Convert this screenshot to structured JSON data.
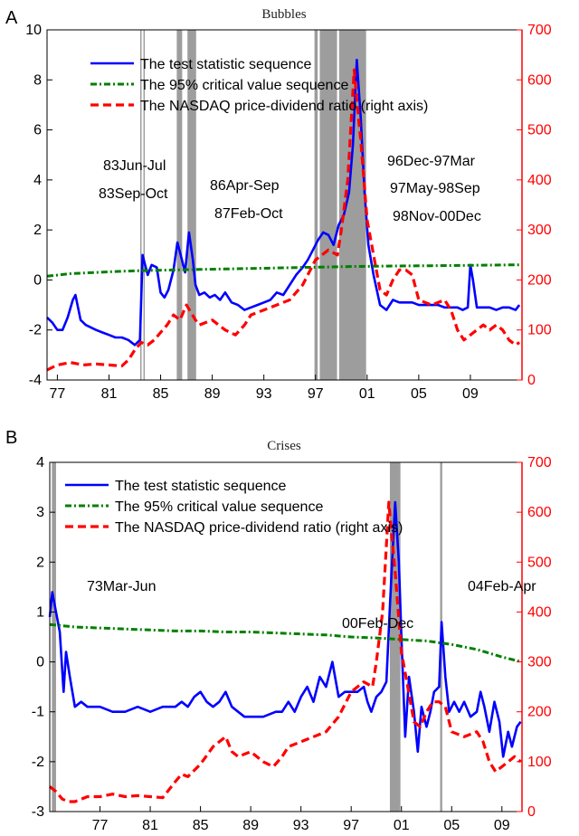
{
  "chart_data": [
    {
      "panel_label": "A",
      "type": "line",
      "title": "Bubbles",
      "x_ticks": [
        "77",
        "81",
        "85",
        "89",
        "93",
        "97",
        "01",
        "05",
        "09"
      ],
      "xlim": [
        1976.2,
        2013.0
      ],
      "left_axis": {
        "ylim": [
          -4,
          10
        ],
        "ticks": [
          "-4",
          "-2",
          "0",
          "2",
          "4",
          "6",
          "8",
          "10"
        ]
      },
      "right_axis": {
        "ylim": [
          0,
          700
        ],
        "ticks": [
          "0",
          "100",
          "200",
          "300",
          "400",
          "500",
          "600",
          "700"
        ],
        "color": "#ff0000"
      },
      "legend": {
        "position": "top-left"
      },
      "annotations": [
        "83Jun-Jul",
        "83Sep-Oct",
        "86Apr-Sep",
        "87Feb-Oct",
        "96Dec-97Mar",
        "97May-98Sep",
        "98Nov-00Dec"
      ],
      "shaded_periods": [
        [
          1983.42,
          1983.5
        ],
        [
          1983.67,
          1983.75
        ],
        [
          1986.25,
          1986.67
        ],
        [
          1987.08,
          1987.75
        ],
        [
          1996.92,
          1997.17
        ],
        [
          1997.33,
          1998.67
        ],
        [
          1998.83,
          2000.92
        ]
      ],
      "series": [
        {
          "name": "The test statistic sequence",
          "color": "#0000ff",
          "style": "solid",
          "axis": "left",
          "x": [
            1976.2,
            1976.6,
            1977.0,
            1977.4,
            1977.8,
            1978.2,
            1978.4,
            1978.8,
            1979.2,
            1979.6,
            1980.0,
            1980.5,
            1981.0,
            1981.5,
            1982.0,
            1982.5,
            1983.0,
            1983.4,
            1983.6,
            1983.8,
            1984.0,
            1984.3,
            1984.7,
            1985.0,
            1985.3,
            1985.6,
            1986.0,
            1986.3,
            1986.6,
            1986.9,
            1987.2,
            1987.5,
            1987.7,
            1988.0,
            1988.4,
            1988.8,
            1989.2,
            1989.6,
            1990.0,
            1990.5,
            1991.0,
            1991.5,
            1992.0,
            1992.5,
            1993.0,
            1993.5,
            1994.0,
            1994.5,
            1995.0,
            1995.5,
            1996.0,
            1996.4,
            1996.8,
            1997.2,
            1997.6,
            1998.0,
            1998.4,
            1998.8,
            1999.2,
            1999.6,
            1999.9,
            2000.2,
            2000.5,
            2000.8,
            2001.1,
            2001.5,
            2002.0,
            2002.5,
            2003.0,
            2003.5,
            2004.0,
            2004.5,
            2005.0,
            2005.5,
            2006.0,
            2006.5,
            2007.0,
            2007.5,
            2008.0,
            2008.4,
            2008.8,
            2009.0,
            2009.2,
            2009.5,
            2010.0,
            2010.5,
            2011.0,
            2011.5,
            2012.0,
            2012.5,
            2012.8
          ],
          "y": [
            -1.5,
            -1.7,
            -2.0,
            -2.0,
            -1.5,
            -0.8,
            -0.6,
            -1.6,
            -1.8,
            -1.9,
            -2.0,
            -2.1,
            -2.2,
            -2.3,
            -2.3,
            -2.4,
            -2.6,
            -2.4,
            1.0,
            0.6,
            0.2,
            0.6,
            0.5,
            -0.5,
            -0.7,
            -0.4,
            0.4,
            1.5,
            0.9,
            0.3,
            1.9,
            0.8,
            -0.2,
            -0.6,
            -0.5,
            -0.7,
            -0.6,
            -0.8,
            -0.5,
            -0.9,
            -1.0,
            -1.2,
            -1.1,
            -1.0,
            -0.9,
            -0.8,
            -0.5,
            -0.6,
            -0.2,
            0.2,
            0.5,
            0.8,
            1.2,
            1.6,
            1.9,
            1.8,
            1.4,
            2.2,
            2.6,
            3.5,
            5.4,
            8.8,
            6.5,
            3.5,
            1.4,
            0.2,
            -1.0,
            -1.2,
            -0.8,
            -0.9,
            -0.9,
            -0.9,
            -1.0,
            -1.0,
            -1.0,
            -1.0,
            -1.1,
            -1.1,
            -1.1,
            -1.2,
            -1.1,
            0.6,
            0.0,
            -1.1,
            -1.1,
            -1.1,
            -1.2,
            -1.1,
            -1.1,
            -1.2,
            -1.0
          ]
        },
        {
          "name": "The 95% critical value sequence",
          "color": "#008000",
          "style": "dash-dot",
          "axis": "left",
          "x": [
            1976.2,
            1978,
            1980,
            1982,
            1984,
            1986,
            1988,
            1990,
            1992,
            1994,
            1996,
            1998,
            2000,
            2002,
            2004,
            2006,
            2008,
            2010,
            2012,
            2012.8
          ],
          "y": [
            0.15,
            0.25,
            0.3,
            0.35,
            0.38,
            0.4,
            0.42,
            0.44,
            0.46,
            0.48,
            0.5,
            0.52,
            0.54,
            0.55,
            0.56,
            0.57,
            0.58,
            0.59,
            0.6,
            0.6
          ]
        },
        {
          "name": "The NASDAQ price-dividend ratio (right axis)",
          "color": "#ff0000",
          "style": "dashed",
          "axis": "right",
          "x": [
            1976.2,
            1977,
            1978,
            1979,
            1980,
            1981,
            1982,
            1982.5,
            1983,
            1983.5,
            1984,
            1984.5,
            1985,
            1985.5,
            1986,
            1986.5,
            1987,
            1987.7,
            1988,
            1989,
            1990,
            1990.8,
            1991.5,
            1992,
            1993,
            1994,
            1995,
            1996,
            1997,
            1998,
            1998.7,
            1999,
            1999.5,
            2000.0,
            2000.2,
            2000.5,
            2001,
            2001.5,
            2002,
            2002.5,
            2003,
            2003.5,
            2004,
            2004.5,
            2005,
            2006,
            2007,
            2007.5,
            2008,
            2008.5,
            2009,
            2009.5,
            2010,
            2010.5,
            2011,
            2011.5,
            2012,
            2012.5,
            2012.8
          ],
          "y": [
            20,
            30,
            35,
            30,
            32,
            30,
            28,
            40,
            60,
            75,
            70,
            80,
            95,
            110,
            130,
            120,
            150,
            120,
            110,
            120,
            100,
            90,
            110,
            130,
            140,
            150,
            160,
            190,
            240,
            260,
            250,
            300,
            400,
            620,
            560,
            480,
            320,
            250,
            180,
            170,
            200,
            220,
            220,
            210,
            160,
            150,
            160,
            140,
            100,
            80,
            90,
            100,
            110,
            100,
            110,
            100,
            80,
            70,
            75
          ]
        }
      ]
    },
    {
      "panel_label": "B",
      "type": "line",
      "title": "Crises",
      "x_ticks": [
        "77",
        "81",
        "85",
        "89",
        "93",
        "97",
        "01",
        "05",
        "09"
      ],
      "xlim": [
        1973.0,
        2010.6
      ],
      "left_axis": {
        "ylim": [
          -3,
          4
        ],
        "ticks": [
          "-3",
          "-2",
          "-1",
          "0",
          "1",
          "2",
          "3",
          "4"
        ]
      },
      "right_axis": {
        "ylim": [
          0,
          700
        ],
        "ticks": [
          "0",
          "100",
          "200",
          "300",
          "400",
          "500",
          "600",
          "700"
        ],
        "color": "#ff0000"
      },
      "legend": {
        "position": "top-left"
      },
      "annotations": [
        "73Mar-Jun",
        "00Feb-Dec",
        "04Feb-Apr"
      ],
      "shaded_periods": [
        [
          1973.17,
          1973.5
        ],
        [
          2000.08,
          2000.92
        ],
        [
          2004.08,
          2004.25
        ]
      ],
      "series": [
        {
          "name": "The test statistic sequence",
          "color": "#0000ff",
          "style": "solid",
          "axis": "left",
          "x": [
            1973.0,
            1973.2,
            1973.5,
            1973.8,
            1974.1,
            1974.3,
            1974.6,
            1975.0,
            1975.5,
            1976.0,
            1977.0,
            1978.0,
            1979.0,
            1980.0,
            1981.0,
            1982.0,
            1983.0,
            1983.5,
            1984.0,
            1984.5,
            1985.0,
            1985.5,
            1986.0,
            1986.5,
            1987.0,
            1987.5,
            1988.0,
            1988.5,
            1989.0,
            1989.5,
            1990.0,
            1991.0,
            1991.5,
            1992.0,
            1992.5,
            1993.0,
            1993.5,
            1994.0,
            1994.5,
            1995.0,
            1995.5,
            1996.0,
            1996.5,
            1997.0,
            1997.5,
            1998.0,
            1998.3,
            1998.6,
            1999.0,
            1999.4,
            1999.8,
            2000.1,
            2000.3,
            2000.5,
            2000.8,
            2001.0,
            2001.3,
            2001.6,
            2002.0,
            2002.3,
            2002.6,
            2003.0,
            2003.3,
            2003.6,
            2004.0,
            2004.2,
            2004.5,
            2004.8,
            2005.2,
            2005.6,
            2006.0,
            2006.5,
            2007.0,
            2007.3,
            2007.6,
            2008.0,
            2008.4,
            2008.8,
            2009.1,
            2009.5,
            2009.8,
            2010.2,
            2010.5
          ],
          "y": [
            0.9,
            1.4,
            1.0,
            0.6,
            -0.6,
            0.2,
            -0.3,
            -0.9,
            -0.8,
            -0.9,
            -0.9,
            -1.0,
            -1.0,
            -0.9,
            -1.0,
            -0.9,
            -0.9,
            -0.8,
            -0.9,
            -0.7,
            -0.6,
            -0.8,
            -0.9,
            -0.8,
            -0.6,
            -0.9,
            -1.0,
            -1.1,
            -1.1,
            -1.1,
            -1.1,
            -1.0,
            -1.0,
            -0.8,
            -1.0,
            -0.7,
            -0.5,
            -0.8,
            -0.3,
            -0.5,
            0.0,
            -0.7,
            -0.6,
            -0.6,
            -0.6,
            -0.5,
            -0.8,
            -1.0,
            -0.7,
            -0.6,
            -0.4,
            1.2,
            2.2,
            3.2,
            2.0,
            0.5,
            -1.5,
            -0.3,
            -1.0,
            -1.8,
            -0.9,
            -1.3,
            -1.0,
            -0.6,
            -0.5,
            0.8,
            -0.3,
            -1.0,
            -0.8,
            -1.0,
            -0.8,
            -1.1,
            -1.0,
            -0.6,
            -0.9,
            -1.4,
            -0.8,
            -1.2,
            -1.9,
            -1.4,
            -1.7,
            -1.3,
            -1.2
          ]
        },
        {
          "name": "The 95% critical value sequence",
          "color": "#008000",
          "style": "dash-dot",
          "axis": "left",
          "x": [
            1973.0,
            1975,
            1977,
            1979,
            1981,
            1983,
            1985,
            1987,
            1989,
            1991,
            1993,
            1995,
            1997,
            1999,
            2001,
            2003,
            2005,
            2007,
            2009,
            2010.6
          ],
          "y": [
            0.75,
            0.7,
            0.68,
            0.66,
            0.64,
            0.62,
            0.62,
            0.6,
            0.6,
            0.58,
            0.56,
            0.54,
            0.5,
            0.48,
            0.45,
            0.42,
            0.35,
            0.25,
            0.1,
            0.0
          ]
        },
        {
          "name": "The NASDAQ price-dividend ratio (right axis)",
          "color": "#ff0000",
          "style": "dashed",
          "axis": "right",
          "x": [
            1973.0,
            1973.5,
            1974.0,
            1974.5,
            1975.0,
            1976.0,
            1977.0,
            1978.0,
            1979.0,
            1980.0,
            1981.0,
            1982.0,
            1983.0,
            1983.5,
            1984.0,
            1985.0,
            1986.0,
            1987.0,
            1987.5,
            1988.0,
            1989.0,
            1990.0,
            1990.8,
            1991.5,
            1992.0,
            1993.0,
            1994.0,
            1995.0,
            1996.0,
            1997.0,
            1998.0,
            1998.7,
            1999.0,
            1999.5,
            2000.0,
            2000.2,
            2000.5,
            2001.0,
            2001.5,
            2002.0,
            2002.5,
            2003.0,
            2003.5,
            2004.0,
            2004.5,
            2005.0,
            2006.0,
            2007.0,
            2007.5,
            2008.0,
            2008.5,
            2009.0,
            2009.5,
            2010.0,
            2010.5
          ],
          "y": [
            50,
            40,
            25,
            20,
            20,
            30,
            30,
            35,
            30,
            32,
            30,
            28,
            60,
            75,
            70,
            95,
            130,
            150,
            120,
            110,
            120,
            100,
            90,
            110,
            130,
            140,
            150,
            160,
            190,
            240,
            260,
            250,
            300,
            400,
            620,
            560,
            480,
            320,
            250,
            180,
            170,
            200,
            220,
            220,
            210,
            160,
            150,
            160,
            140,
            100,
            80,
            90,
            100,
            110,
            100
          ]
        }
      ]
    }
  ]
}
